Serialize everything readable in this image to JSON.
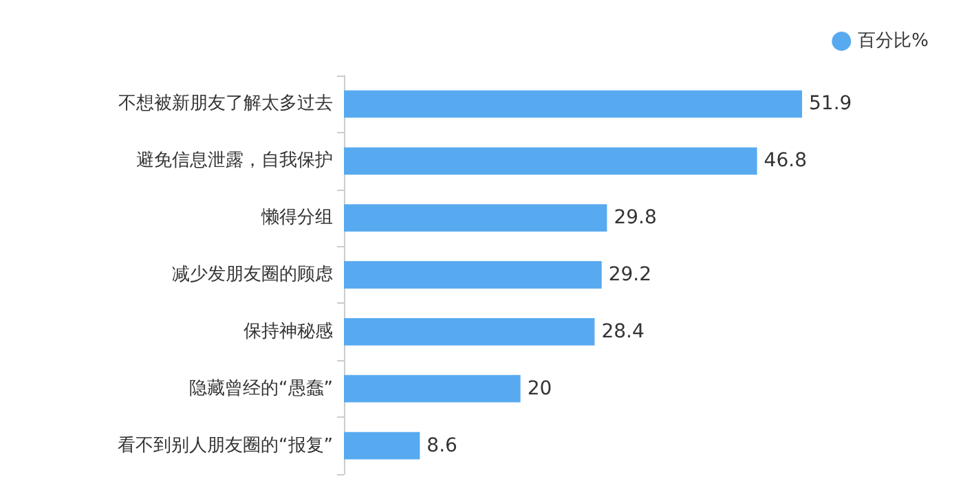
{
  "chart_data": {
    "type": "bar",
    "orientation": "horizontal",
    "categories": [
      "不想被新朋友了解太多过去",
      "避免信息泄露，自我保护",
      "懒得分组",
      "减少发朋友圈的顾虑",
      "保持神秘感",
      "隐藏曾经的“愚蠢”",
      "看不到别人朋友圈的“报复”"
    ],
    "series": [
      {
        "name": "百分比%",
        "color": "#58aaf0",
        "values": [
          51.9,
          46.8,
          29.8,
          29.2,
          28.4,
          20,
          8.6
        ]
      }
    ],
    "data_labels": true,
    "legend": "top right"
  }
}
